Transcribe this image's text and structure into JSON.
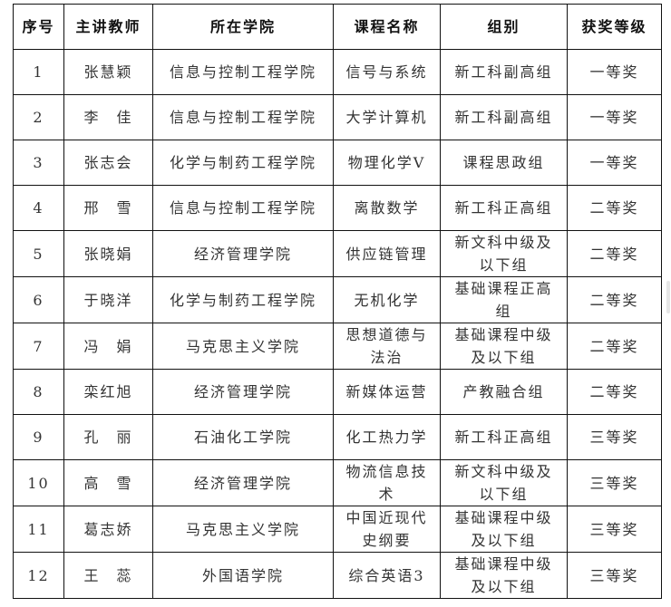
{
  "headers": [
    "序号",
    "主讲教师",
    "所在学院",
    "课程名称",
    "组别",
    "获奖等级"
  ],
  "rows": [
    [
      "1",
      "张慧颖",
      "信息与控制工程学院",
      "信号与系统",
      "新工科副高组",
      "一等奖"
    ],
    [
      "2",
      "李　佳",
      "信息与控制工程学院",
      "大学计算机",
      "新工科副高组",
      "一等奖"
    ],
    [
      "3",
      "张志会",
      "化学与制药工程学院",
      "物理化学Ⅴ",
      "课程思政组",
      "一等奖"
    ],
    [
      "4",
      "邢　雪",
      "信息与控制工程学院",
      "离散数学",
      "新工科正高组",
      "二等奖"
    ],
    [
      "5",
      "张晓娟",
      "经济管理学院",
      "供应链管理",
      "新文科中级及以下组",
      "二等奖"
    ],
    [
      "6",
      "于晓洋",
      "化学与制药工程学院",
      "无机化学",
      "基础课程正高组",
      "二等奖"
    ],
    [
      "7",
      "冯　娟",
      "马克思主义学院",
      "思想道德与法治",
      "基础课程中级及以下组",
      "二等奖"
    ],
    [
      "8",
      "栾红旭",
      "经济管理学院",
      "新媒体运营",
      "产教融合组",
      "二等奖"
    ],
    [
      "9",
      "孔　丽",
      "石油化工学院",
      "化工热力学",
      "新工科正高组",
      "三等奖"
    ],
    [
      "10",
      "高　雪",
      "经济管理学院",
      "物流信息技术",
      "新文科中级及以下组",
      "三等奖"
    ],
    [
      "11",
      "葛志娇",
      "马克思主义学院",
      "中国近现代史纲要",
      "基础课程中级及以下组",
      "三等奖"
    ],
    [
      "12",
      "王　蕊",
      "外国语学院",
      "综合英语3",
      "基础课程中级及以下组",
      "三等奖"
    ]
  ]
}
